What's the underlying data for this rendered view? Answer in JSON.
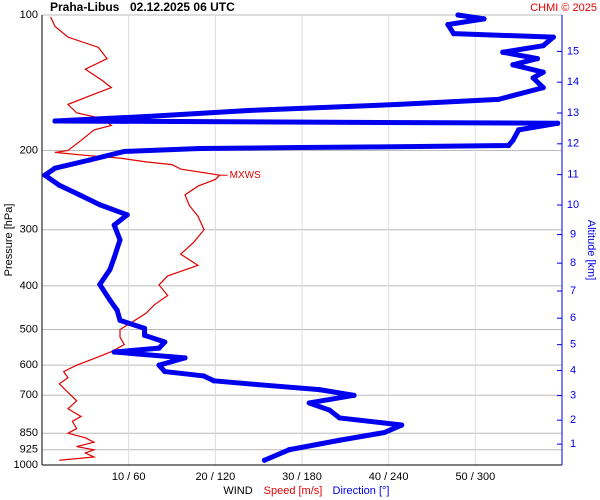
{
  "chart_data": {
    "type": "wind-profile",
    "title": "Praha-Libus",
    "subtitle": "02.12.2025 06 UTC",
    "credit": "CHMI © 2025",
    "ylabel": "Pressure [hPa]",
    "y2label": "Altitude [km]",
    "xlabel": "WIND",
    "xlabel_speed": "Speed [m/s]",
    "xlabel_direction": "Direction [°]",
    "log_y": true,
    "grid": true,
    "ylim": [
      100,
      1000
    ],
    "yticks": [
      100,
      200,
      300,
      400,
      500,
      600,
      700,
      850,
      925,
      1000
    ],
    "xlim": [
      0,
      60
    ],
    "x2lim": [
      0,
      360
    ],
    "xticks": [
      {
        "value": 10,
        "label": "10 / 60"
      },
      {
        "value": 20,
        "label": "20 / 120"
      },
      {
        "value": 30,
        "label": "30 / 180"
      },
      {
        "value": 40,
        "label": "40 / 240"
      },
      {
        "value": 50,
        "label": "50 / 300"
      }
    ],
    "altitude_ticks": [
      1,
      2,
      3,
      4,
      5,
      6,
      7,
      8,
      9,
      10,
      11,
      12,
      13,
      14,
      15
    ],
    "annotation": {
      "text": "MXWS",
      "pressure": 227,
      "speed": 20.5
    },
    "series": [
      {
        "name": "Speed",
        "color": "#e00000",
        "pressure": [
          976,
          960,
          940,
          925,
          910,
          890,
          870,
          850,
          830,
          800,
          780,
          750,
          720,
          690,
          660,
          640,
          620,
          600,
          580,
          560,
          540,
          520,
          500,
          480,
          460,
          440,
          420,
          398,
          380,
          360,
          340,
          320,
          300,
          280,
          265,
          251,
          240,
          232,
          227,
          220,
          215,
          212,
          208,
          205,
          202,
          200,
          190,
          180,
          176,
          170,
          165,
          158,
          150,
          145,
          140,
          132,
          125,
          118,
          112,
          106,
          101
        ],
        "values": [
          2.0,
          6.0,
          5.0,
          6.0,
          4.0,
          6.0,
          5.0,
          3.0,
          4.0,
          3.5,
          4.5,
          3.0,
          4.0,
          3.0,
          2.0,
          3.0,
          2.5,
          4.0,
          6.0,
          8.0,
          9.5,
          9.0,
          9.0,
          10.5,
          12.0,
          13.0,
          14.5,
          13.5,
          14.5,
          18.0,
          16.0,
          17.5,
          18.7,
          18.0,
          17.0,
          16.5,
          18.0,
          20.0,
          20.5,
          16.0,
          15.0,
          12.0,
          9.0,
          5.0,
          1.5,
          3.0,
          4.5,
          6.0,
          8.0,
          7.0,
          4.0,
          3.0,
          6.0,
          8.0,
          7.0,
          5.0,
          7.5,
          6.5,
          3.0,
          1.5,
          1.0
        ]
      },
      {
        "name": "Direction",
        "color": "#0000ee",
        "axis": "x2",
        "pressure": [
          976,
          925,
          881,
          847,
          815,
          786,
          755,
          728,
          700,
          680,
          663,
          650,
          634,
          620,
          600,
          578,
          561,
          550,
          533,
          515,
          497,
          477,
          453,
          430,
          397,
          368,
          346,
          316,
          293,
          278,
          264,
          251,
          239,
          227,
          219,
          210,
          201,
          198,
          197,
          196,
          195,
          190,
          180,
          174,
          172,
          168,
          163,
          158,
          154,
          145,
          138,
          134,
          129,
          125,
          121,
          117,
          112,
          110,
          105,
          102,
          100
        ],
        "values": [
          154,
          171,
          206,
          237,
          249,
          206,
          199,
          185,
          216,
          192,
          150,
          119,
          112,
          85,
          81,
          99,
          50,
          81,
          85,
          71,
          71,
          54,
          52,
          47,
          40,
          47,
          50,
          54,
          50,
          59,
          40,
          26,
          12,
          2,
          9,
          33,
          57,
          109,
          178,
          261,
          323,
          326,
          330,
          357,
          9,
          74,
          143,
          247,
          316,
          347,
          340,
          347,
          326,
          343,
          319,
          347,
          354,
          285,
          281,
          306,
          288
        ]
      }
    ]
  }
}
